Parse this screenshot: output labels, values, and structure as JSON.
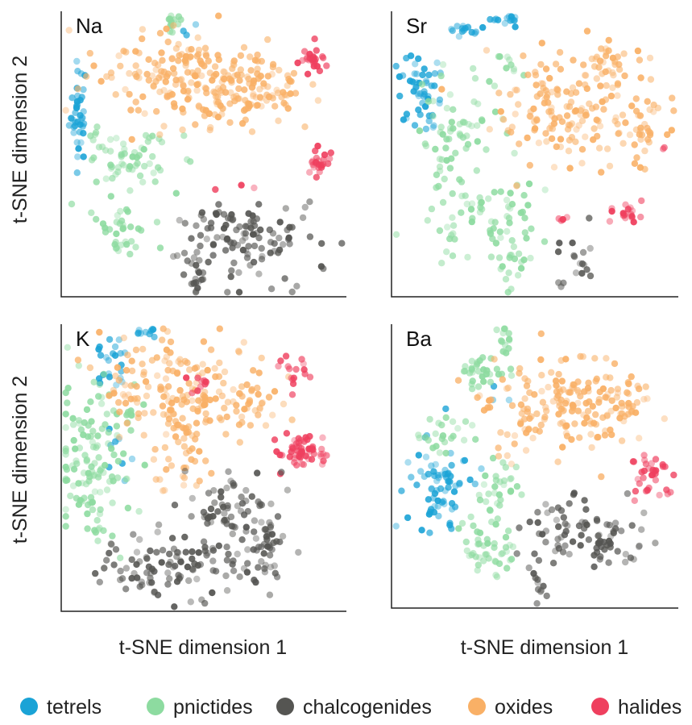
{
  "colors": {
    "tetrels": "#1aa3d6",
    "pnictides": "#8ddba0",
    "chalcogenides": "#555552",
    "oxides": "#f9b066",
    "halides": "#ef3f5e"
  },
  "chart_data": {
    "type": "scatter",
    "xlabel": "t-SNE dimension 1",
    "ylabel": "t-SNE dimension 2",
    "grid": false,
    "legend_position": "bottom",
    "legend": [
      {
        "key": "tetrels",
        "label": "tetrels"
      },
      {
        "key": "pnictides",
        "label": "pnictides"
      },
      {
        "key": "chalcogenides",
        "label": "chalcogenides"
      },
      {
        "key": "oxides",
        "label": "oxides"
      },
      {
        "key": "halides",
        "label": "halides"
      }
    ],
    "xlim": [
      0,
      100
    ],
    "ylim": [
      0,
      100
    ],
    "panels": [
      {
        "label": "Na",
        "clusters": [
          {
            "cls": "tetrels",
            "x": 5,
            "y": 65,
            "sx": 1.6,
            "sy": 9,
            "n": 38
          },
          {
            "cls": "tetrels",
            "x": 45,
            "y": 95,
            "sx": 2,
            "sy": 2,
            "n": 3
          },
          {
            "cls": "pnictides",
            "x": 38,
            "y": 97,
            "sx": 2,
            "sy": 1.5,
            "n": 12
          },
          {
            "cls": "pnictides",
            "x": 24,
            "y": 47,
            "sx": 8,
            "sy": 5,
            "n": 55
          },
          {
            "cls": "pnictides",
            "x": 20,
            "y": 24,
            "sx": 5,
            "sy": 7,
            "n": 35
          },
          {
            "cls": "pnictides",
            "x": 12,
            "y": 56,
            "sx": 2,
            "sy": 2,
            "n": 6
          },
          {
            "cls": "oxides",
            "x": 40,
            "y": 78,
            "sx": 15,
            "sy": 8,
            "n": 170
          },
          {
            "cls": "oxides",
            "x": 72,
            "y": 73,
            "sx": 8,
            "sy": 5,
            "n": 60
          },
          {
            "cls": "oxides",
            "x": 56,
            "y": 70,
            "sx": 8,
            "sy": 5,
            "n": 40
          },
          {
            "cls": "halides",
            "x": 89,
            "y": 84,
            "sx": 3,
            "sy": 2.3,
            "n": 28
          },
          {
            "cls": "halides",
            "x": 90,
            "y": 47,
            "sx": 2.2,
            "sy": 3,
            "n": 24
          },
          {
            "cls": "halides",
            "x": 65,
            "y": 35,
            "sx": 10,
            "sy": 3,
            "n": 3
          },
          {
            "cls": "chalcogenides",
            "x": 63,
            "y": 20,
            "sx": 14,
            "sy": 7,
            "n": 120
          },
          {
            "cls": "chalcogenides",
            "x": 48,
            "y": 4,
            "sx": 2.5,
            "sy": 3,
            "n": 14
          }
        ]
      },
      {
        "label": "Sr",
        "clusters": [
          {
            "cls": "tetrels",
            "x": 9,
            "y": 73,
            "sx": 4,
            "sy": 7,
            "n": 50
          },
          {
            "cls": "tetrels",
            "x": 25,
            "y": 94,
            "sx": 3,
            "sy": 1.3,
            "n": 14
          },
          {
            "cls": "tetrels",
            "x": 40,
            "y": 98,
            "sx": 3.5,
            "sy": 1.2,
            "n": 14
          },
          {
            "cls": "pnictides",
            "x": 22,
            "y": 57,
            "sx": 8,
            "sy": 11,
            "n": 60
          },
          {
            "cls": "pnictides",
            "x": 32,
            "y": 28,
            "sx": 10,
            "sy": 9,
            "n": 70
          },
          {
            "cls": "pnictides",
            "x": 42,
            "y": 10,
            "sx": 3,
            "sy": 6,
            "n": 18
          },
          {
            "cls": "pnictides",
            "x": 40,
            "y": 80,
            "sx": 5,
            "sy": 4,
            "n": 10
          },
          {
            "cls": "oxides",
            "x": 60,
            "y": 65,
            "sx": 13,
            "sy": 9,
            "n": 130
          },
          {
            "cls": "oxides",
            "x": 78,
            "y": 82,
            "sx": 8,
            "sy": 5,
            "n": 40
          },
          {
            "cls": "oxides",
            "x": 88,
            "y": 60,
            "sx": 6,
            "sy": 6,
            "n": 40
          },
          {
            "cls": "halides",
            "x": 83,
            "y": 29,
            "sx": 2.6,
            "sy": 2.2,
            "n": 18
          },
          {
            "cls": "halides",
            "x": 60,
            "y": 27,
            "sx": 1.2,
            "sy": 1.2,
            "n": 4
          },
          {
            "cls": "halides",
            "x": 97,
            "y": 52,
            "sx": 0.8,
            "sy": 1,
            "n": 2
          },
          {
            "cls": "chalcogenides",
            "x": 64,
            "y": 10,
            "sx": 4,
            "sy": 5,
            "n": 18
          }
        ]
      },
      {
        "label": "K",
        "clusters": [
          {
            "cls": "tetrels",
            "x": 16,
            "y": 88,
            "sx": 3,
            "sy": 5,
            "n": 22
          },
          {
            "cls": "tetrels",
            "x": 29,
            "y": 98,
            "sx": 2.5,
            "sy": 1.2,
            "n": 10
          },
          {
            "cls": "tetrels",
            "x": 20,
            "y": 56,
            "sx": 3,
            "sy": 4,
            "n": 8
          },
          {
            "cls": "pnictides",
            "x": 10,
            "y": 50,
            "sx": 6,
            "sy": 15,
            "n": 130
          },
          {
            "cls": "pnictides",
            "x": 24,
            "y": 69,
            "sx": 2,
            "sy": 2,
            "n": 8
          },
          {
            "cls": "oxides",
            "x": 42,
            "y": 79,
            "sx": 14,
            "sy": 9,
            "n": 150
          },
          {
            "cls": "oxides",
            "x": 42,
            "y": 55,
            "sx": 6,
            "sy": 10,
            "n": 50
          },
          {
            "cls": "oxides",
            "x": 68,
            "y": 72,
            "sx": 5,
            "sy": 6,
            "n": 30
          },
          {
            "cls": "halides",
            "x": 85,
            "y": 56,
            "sx": 5,
            "sy": 3.4,
            "n": 55
          },
          {
            "cls": "halides",
            "x": 82,
            "y": 84,
            "sx": 2.5,
            "sy": 3,
            "n": 16
          },
          {
            "cls": "halides",
            "x": 48,
            "y": 80,
            "sx": 2.8,
            "sy": 1.2,
            "n": 10
          },
          {
            "cls": "chalcogenides",
            "x": 38,
            "y": 15,
            "sx": 12,
            "sy": 6,
            "n": 100
          },
          {
            "cls": "chalcogenides",
            "x": 60,
            "y": 33,
            "sx": 8,
            "sy": 9,
            "n": 70
          },
          {
            "cls": "chalcogenides",
            "x": 73,
            "y": 22,
            "sx": 4,
            "sy": 8,
            "n": 40
          }
        ]
      },
      {
        "label": "Ba",
        "clusters": [
          {
            "cls": "tetrels",
            "x": 16,
            "y": 42,
            "sx": 6,
            "sy": 8,
            "n": 70
          },
          {
            "cls": "tetrels",
            "x": 36,
            "y": 78,
            "sx": 2,
            "sy": 2,
            "n": 3
          },
          {
            "cls": "pnictides",
            "x": 34,
            "y": 20,
            "sx": 5,
            "sy": 5,
            "n": 45
          },
          {
            "cls": "pnictides",
            "x": 36,
            "y": 42,
            "sx": 5,
            "sy": 5,
            "n": 30
          },
          {
            "cls": "pnictides",
            "x": 30,
            "y": 83,
            "sx": 4,
            "sy": 3.5,
            "n": 30
          },
          {
            "cls": "pnictides",
            "x": 18,
            "y": 62,
            "sx": 5,
            "sy": 4,
            "n": 25
          },
          {
            "cls": "pnictides",
            "x": 40,
            "y": 95,
            "sx": 1.5,
            "sy": 4,
            "n": 15
          },
          {
            "cls": "oxides",
            "x": 58,
            "y": 72,
            "sx": 12,
            "sy": 10,
            "n": 150
          },
          {
            "cls": "oxides",
            "x": 80,
            "y": 74,
            "sx": 7,
            "sy": 5,
            "n": 40
          },
          {
            "cls": "halides",
            "x": 91,
            "y": 47,
            "sx": 4,
            "sy": 4,
            "n": 35
          },
          {
            "cls": "chalcogenides",
            "x": 68,
            "y": 24,
            "sx": 12,
            "sy": 6,
            "n": 90
          },
          {
            "cls": "chalcogenides",
            "x": 52,
            "y": 6,
            "sx": 2,
            "sy": 4,
            "n": 10
          }
        ]
      }
    ]
  }
}
